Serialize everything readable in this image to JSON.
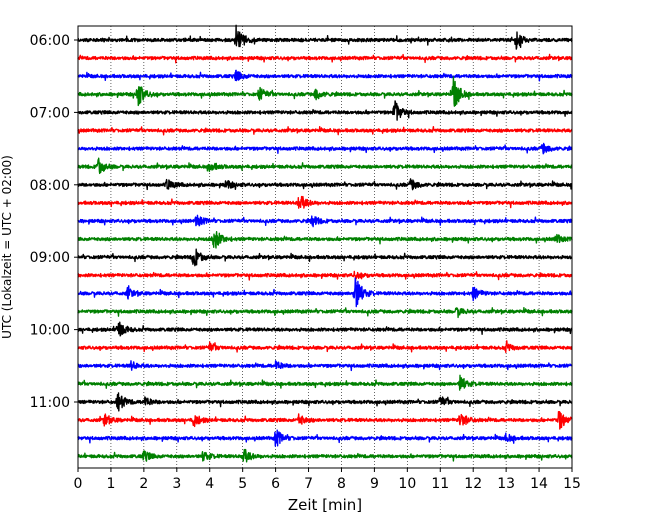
{
  "chart_data": {
    "type": "line",
    "subtype": "helicorder",
    "title": "",
    "xlabel": "Zeit  [min]",
    "ylabel": "UTC (Lokalzeit = UTC + 02:00)",
    "xlim": [
      0,
      15
    ],
    "x_ticks": [
      "0",
      "1",
      "2",
      "3",
      "4",
      "5",
      "6",
      "7",
      "8",
      "9",
      "10",
      "11",
      "12",
      "13",
      "14",
      "15"
    ],
    "y_tick_labels": [
      "06:00",
      "07:00",
      "08:00",
      "09:00",
      "10:00",
      "11:00"
    ],
    "trace_interval_min": 15,
    "grid": "vertical dotted lines at each minute",
    "trace_colors": [
      "#000000",
      "#ff0000",
      "#0000ff",
      "#008000"
    ],
    "traces": [
      {
        "start": "06:00",
        "events": [
          {
            "x": 4.8,
            "amp": 3.2
          },
          {
            "x": 13.3,
            "amp": 1.6
          }
        ]
      },
      {
        "start": "06:15",
        "events": []
      },
      {
        "start": "06:30",
        "events": [
          {
            "x": 4.8,
            "amp": 1.0
          }
        ]
      },
      {
        "start": "06:45",
        "events": [
          {
            "x": 1.8,
            "amp": 2.6
          },
          {
            "x": 5.5,
            "amp": 1.3
          },
          {
            "x": 7.2,
            "amp": 1.1
          },
          {
            "x": 11.4,
            "amp": 3.2
          }
        ]
      },
      {
        "start": "07:00",
        "events": [
          {
            "x": 9.6,
            "amp": 2.4
          }
        ]
      },
      {
        "start": "07:15",
        "events": []
      },
      {
        "start": "07:30",
        "events": [
          {
            "x": 14.1,
            "amp": 1.0
          }
        ]
      },
      {
        "start": "07:45",
        "events": [
          {
            "x": 0.6,
            "amp": 1.8
          },
          {
            "x": 4.0,
            "amp": 1.0
          }
        ]
      },
      {
        "start": "08:00",
        "events": [
          {
            "x": 2.7,
            "amp": 1.0
          },
          {
            "x": 4.5,
            "amp": 0.8
          },
          {
            "x": 10.1,
            "amp": 1.1
          }
        ]
      },
      {
        "start": "08:15",
        "events": [
          {
            "x": 6.7,
            "amp": 2.1
          }
        ]
      },
      {
        "start": "08:30",
        "events": [
          {
            "x": 3.6,
            "amp": 1.2
          },
          {
            "x": 7.1,
            "amp": 1.1
          }
        ]
      },
      {
        "start": "08:45",
        "events": [
          {
            "x": 4.1,
            "amp": 2.6
          },
          {
            "x": 14.5,
            "amp": 0.9
          }
        ]
      },
      {
        "start": "09:00",
        "events": [
          {
            "x": 3.5,
            "amp": 2.3
          }
        ]
      },
      {
        "start": "09:15",
        "events": [
          {
            "x": 8.4,
            "amp": 0.8
          }
        ]
      },
      {
        "start": "09:30",
        "events": [
          {
            "x": 1.5,
            "amp": 1.0
          },
          {
            "x": 8.4,
            "amp": 4.0
          },
          {
            "x": 12.0,
            "amp": 1.2
          }
        ]
      },
      {
        "start": "09:45",
        "events": [
          {
            "x": 11.5,
            "amp": 0.8
          }
        ]
      },
      {
        "start": "10:00",
        "events": [
          {
            "x": 1.2,
            "amp": 2.0
          }
        ]
      },
      {
        "start": "10:15",
        "events": [
          {
            "x": 4.0,
            "amp": 0.8
          },
          {
            "x": 13.0,
            "amp": 0.8
          }
        ]
      },
      {
        "start": "10:30",
        "events": [
          {
            "x": 1.6,
            "amp": 0.8
          },
          {
            "x": 6.0,
            "amp": 0.8
          }
        ]
      },
      {
        "start": "10:45",
        "events": [
          {
            "x": 11.6,
            "amp": 1.5
          }
        ]
      },
      {
        "start": "11:00",
        "events": [
          {
            "x": 1.2,
            "amp": 2.0
          },
          {
            "x": 2.0,
            "amp": 1.0
          },
          {
            "x": 11.0,
            "amp": 1.0
          }
        ]
      },
      {
        "start": "11:15",
        "events": [
          {
            "x": 0.8,
            "amp": 1.2
          },
          {
            "x": 3.5,
            "amp": 1.3
          },
          {
            "x": 6.7,
            "amp": 1.0
          },
          {
            "x": 11.6,
            "amp": 1.6
          },
          {
            "x": 14.6,
            "amp": 2.0
          }
        ]
      },
      {
        "start": "11:30",
        "events": [
          {
            "x": 6.0,
            "amp": 1.8
          },
          {
            "x": 13.0,
            "amp": 0.8
          }
        ]
      },
      {
        "start": "11:45",
        "events": [
          {
            "x": 2.0,
            "amp": 1.0
          },
          {
            "x": 3.8,
            "amp": 1.0
          },
          {
            "x": 5.0,
            "amp": 1.8
          }
        ]
      }
    ]
  }
}
